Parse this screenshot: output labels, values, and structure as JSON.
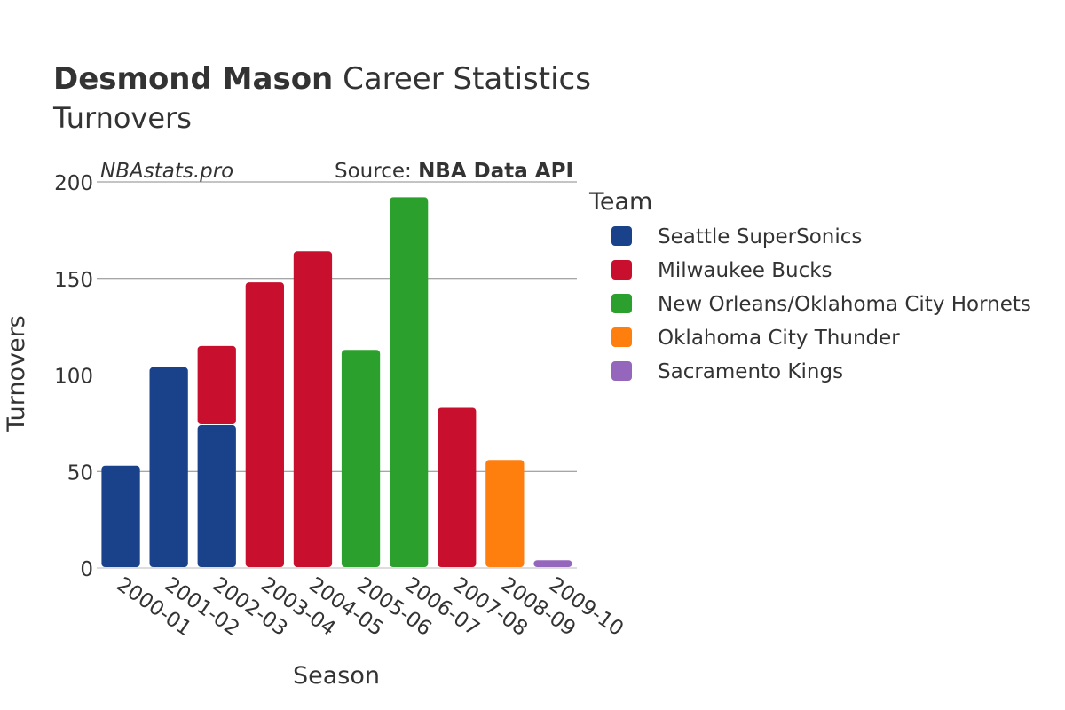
{
  "header": {
    "player_name": "Desmond Mason",
    "title_suffix": " Career Statistics",
    "subtitle": "Turnovers"
  },
  "watermark": {
    "site": "NBAstats.pro",
    "source_prefix": "Source: ",
    "source_name": "NBA Data API"
  },
  "chart_data": {
    "type": "bar",
    "stacked": true,
    "title": "Desmond Mason Career Statistics",
    "subtitle": "Turnovers",
    "xlabel": "Season",
    "ylabel": "Turnovers",
    "ylim": [
      0,
      200
    ],
    "yticks": [
      0,
      50,
      100,
      150,
      200
    ],
    "grid": true,
    "legend_title": "Team",
    "legend_position": "right",
    "categories": [
      "2000-01",
      "2001-02",
      "2002-03",
      "2003-04",
      "2004-05",
      "2005-06",
      "2006-07",
      "2007-08",
      "2008-09",
      "2009-10"
    ],
    "series": [
      {
        "name": "Seattle SuperSonics",
        "color": "#1a428a",
        "values": [
          53,
          104,
          74,
          0,
          0,
          0,
          0,
          0,
          0,
          0
        ]
      },
      {
        "name": "Milwaukee Bucks",
        "color": "#c8102e",
        "values": [
          0,
          0,
          41,
          148,
          164,
          0,
          0,
          83,
          0,
          0
        ]
      },
      {
        "name": "New Orleans/Oklahoma City Hornets",
        "color": "#2ca02c",
        "values": [
          0,
          0,
          0,
          0,
          0,
          113,
          192,
          0,
          0,
          0
        ]
      },
      {
        "name": "Oklahoma City Thunder",
        "color": "#ff7f0e",
        "values": [
          0,
          0,
          0,
          0,
          0,
          0,
          0,
          0,
          56,
          0
        ]
      },
      {
        "name": "Sacramento Kings",
        "color": "#9467bd",
        "values": [
          0,
          0,
          0,
          0,
          0,
          0,
          0,
          0,
          0,
          4
        ]
      }
    ]
  }
}
